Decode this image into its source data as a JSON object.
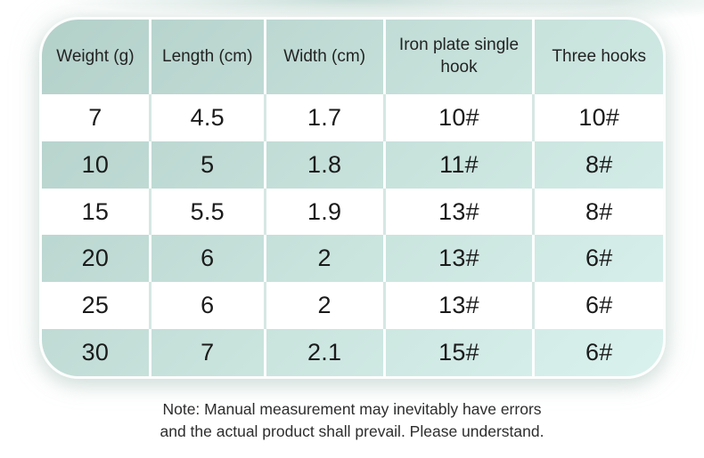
{
  "chart_data": {
    "type": "table",
    "title": "",
    "columns": [
      "Weight (g)",
      "Length (cm)",
      "Width (cm)",
      "Iron plate single hook",
      "Three hooks"
    ],
    "rows": [
      [
        "7",
        "4.5",
        "1.7",
        "10#",
        "10#"
      ],
      [
        "10",
        "5",
        "1.8",
        "11#",
        "8#"
      ],
      [
        "15",
        "5.5",
        "1.9",
        "13#",
        "8#"
      ],
      [
        "20",
        "6",
        "2",
        "13#",
        "6#"
      ],
      [
        "25",
        "6",
        "2",
        "13#",
        "6#"
      ],
      [
        "30",
        "7",
        "2.1",
        "15#",
        "6#"
      ]
    ],
    "layout_hints": {
      "column_width_percents": [
        17.4,
        18.5,
        19.2,
        24.1,
        20.8
      ],
      "row_striping": "white / teal alternating, header and even rows teal gradient",
      "corner_radius_px": 44
    }
  },
  "note": {
    "lines": [
      "Note: Manual measurement may inevitably have errors",
      "and the actual product shall prevail. Please understand."
    ]
  },
  "colors": {
    "table_gradient_start": "#b3d0c9",
    "table_gradient_end": "#daf2ee",
    "row_white": "#ffffff",
    "divider_on_teal": "#ffffff",
    "divider_on_white": "#d6e7e3",
    "cell_text": "#1b1b1b",
    "note_text": "#2d2d2d",
    "page_background": "#ffffff",
    "top_edge_wash": "#b0d0c8"
  }
}
